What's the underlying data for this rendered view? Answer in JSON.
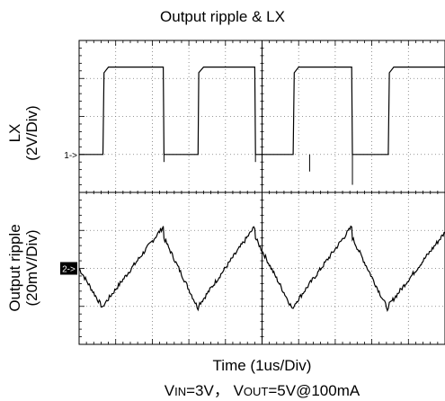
{
  "chart_data": {
    "type": "line",
    "title": "Output ripple & LX",
    "xlabel": "Time (1us/Div)",
    "x_unit": "us",
    "xlim": [
      0,
      10
    ],
    "subtitle": {
      "vin_main": "V",
      "vin_sub": "IN",
      "vin_val": "=3V， ",
      "vout_main": "V",
      "vout_sub": "OUT",
      "vout_val": "=5V@100mA"
    },
    "grid": true,
    "grid_style": "dotted",
    "divisions": {
      "x": 10,
      "y": 8
    },
    "traces": [
      {
        "name": "LX",
        "ylabel_line1": "LX",
        "ylabel_line2": "(2V/Div)",
        "scale": "2V/Div",
        "marker_label": "1->",
        "marker_style": "plain",
        "unit": "V",
        "ylim": [
          -2,
          6
        ],
        "x": [
          0.0,
          0.65,
          0.68,
          0.8,
          2.3,
          2.32,
          3.25,
          3.27,
          3.4,
          4.8,
          4.82,
          5.85,
          5.88,
          6.0,
          7.45,
          7.47,
          8.45,
          8.48,
          8.6,
          10.0
        ],
        "y": [
          0.0,
          0.0,
          4.3,
          4.6,
          4.6,
          0.0,
          0.0,
          4.3,
          4.6,
          4.6,
          0.0,
          0.0,
          4.3,
          4.6,
          4.6,
          0.0,
          0.0,
          4.3,
          4.6,
          4.6
        ],
        "spikes": [
          {
            "x": 2.32,
            "y": -0.4
          },
          {
            "x": 4.82,
            "y": -0.4
          },
          {
            "x": 6.3,
            "y": -0.9
          },
          {
            "x": 7.47,
            "y": -1.6
          }
        ]
      },
      {
        "name": "Output ripple",
        "ylabel_line1": "Output ripple",
        "ylabel_line2": "(20mV/Div)",
        "scale": "20mV/Div",
        "marker_label": "2->",
        "marker_style": "filled",
        "unit": "mV",
        "ylim": [
          -40,
          40
        ],
        "x": [
          0.0,
          0.65,
          0.68,
          0.8,
          2.3,
          2.32,
          3.25,
          3.27,
          3.4,
          4.8,
          4.82,
          5.85,
          5.88,
          6.0,
          7.45,
          7.47,
          8.45,
          8.48,
          8.6,
          10.0
        ],
        "y": [
          0,
          -21,
          -19,
          -16,
          22,
          16,
          -21,
          -19,
          -16,
          22,
          16,
          -22,
          -19,
          -16,
          22,
          16,
          -22,
          -19,
          -16,
          19
        ],
        "noise_mV": 1.2
      }
    ]
  }
}
